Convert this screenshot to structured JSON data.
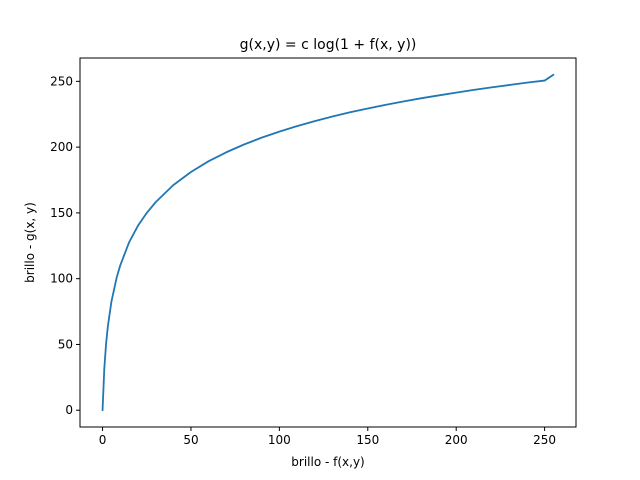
{
  "chart_data": {
    "type": "line",
    "title": "g(x,y) = c log(1 + f(x, y))",
    "xlabel": "brillo - f(x,y)",
    "ylabel": "brillo - g(x, y)",
    "xlim": [
      -12.75,
      267.75
    ],
    "ylim": [
      -12.75,
      267.75
    ],
    "xticks": [
      0,
      50,
      100,
      150,
      200,
      250
    ],
    "yticks": [
      0,
      50,
      100,
      150,
      200,
      250
    ],
    "grid": false,
    "series": [
      {
        "color": "#1f77b4",
        "x": [
          0,
          1,
          2,
          3,
          5,
          8,
          10,
          15,
          20,
          25,
          30,
          40,
          50,
          60,
          70,
          80,
          90,
          100,
          110,
          120,
          130,
          140,
          150,
          160,
          170,
          180,
          190,
          200,
          210,
          220,
          230,
          240,
          250,
          255
        ],
        "y": [
          0.0,
          31.9,
          50.5,
          63.8,
          82.4,
          100.9,
          110.1,
          127.6,
          140.2,
          150.0,
          158.1,
          171.1,
          181.1,
          189.3,
          196.1,
          202.0,
          207.2,
          211.8,
          216.0,
          219.8,
          223.3,
          226.5,
          229.4,
          232.1,
          234.7,
          237.1,
          239.3,
          241.4,
          243.5,
          245.4,
          247.2,
          249.0,
          250.6,
          255.0
        ]
      }
    ]
  }
}
